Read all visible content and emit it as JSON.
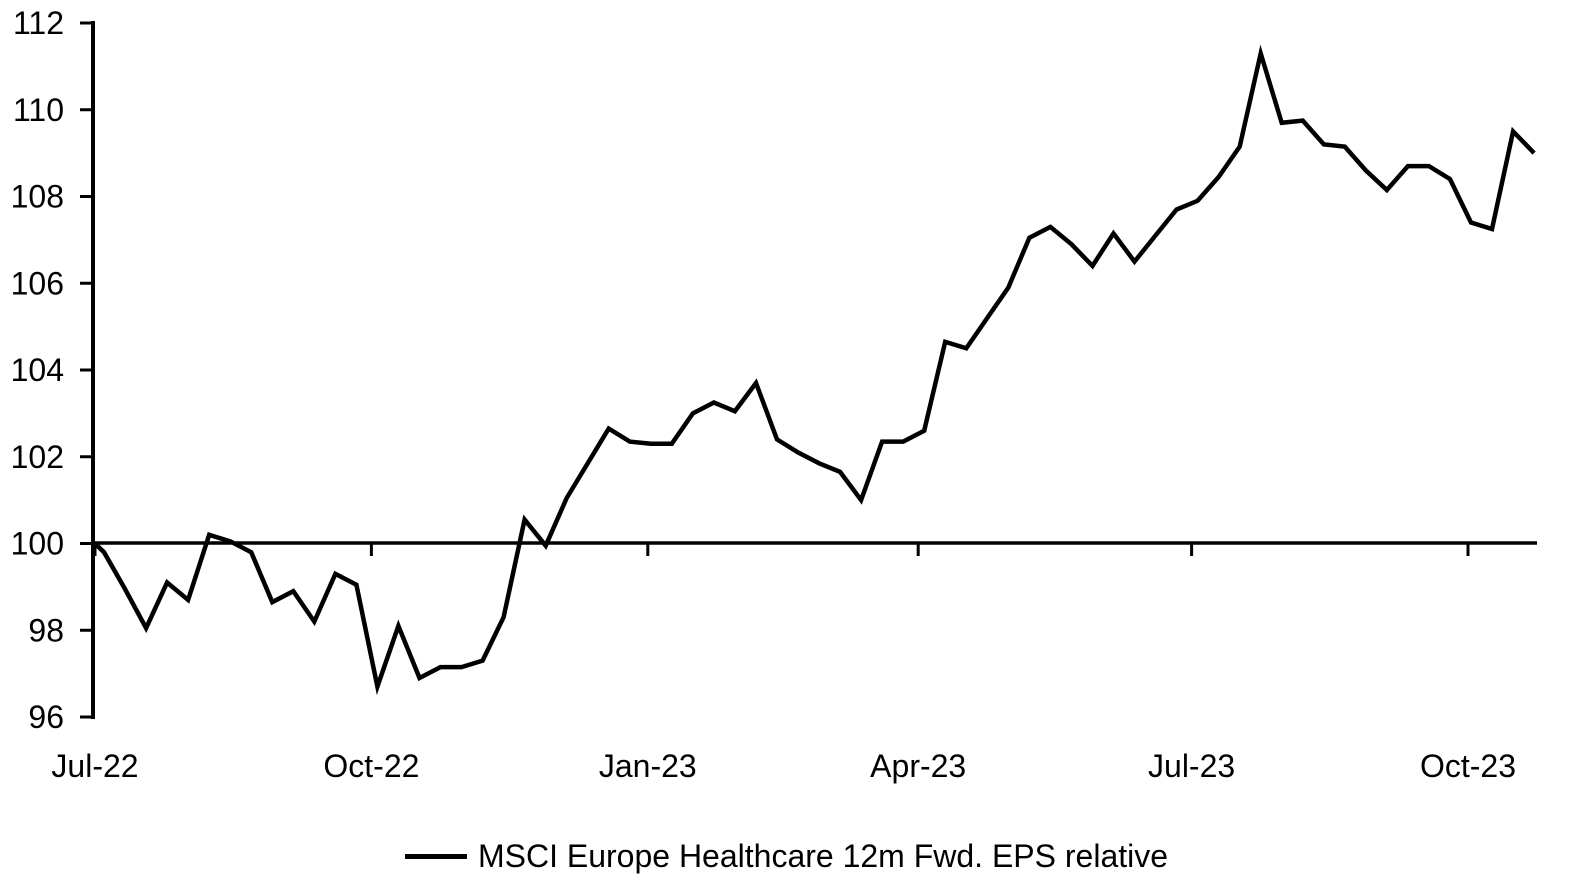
{
  "chart_data": {
    "type": "line",
    "title": "",
    "xlabel": "",
    "ylabel": "",
    "ylim": [
      96,
      112
    ],
    "y_ticks": [
      96,
      98,
      100,
      102,
      104,
      106,
      108,
      110,
      112
    ],
    "x_ticks": [
      {
        "label": "Jul-22",
        "date": "2022-07-01"
      },
      {
        "label": "Oct-22",
        "date": "2022-10-01"
      },
      {
        "label": "Jan-23",
        "date": "2023-01-01"
      },
      {
        "label": "Apr-23",
        "date": "2023-04-01"
      },
      {
        "label": "Jul-23",
        "date": "2023-07-01"
      },
      {
        "label": "Oct-23",
        "date": "2023-10-01"
      }
    ],
    "baseline_value": 100,
    "grid": false,
    "axis_color": "#000000",
    "background_color": "#ffffff",
    "legend_position": "bottom-center",
    "legend": {
      "label": "MSCI Europe Healthcare 12m Fwd. EPS relative"
    },
    "series": [
      {
        "name": "MSCI Europe Healthcare 12m Fwd. EPS relative",
        "color": "#000000",
        "points": [
          {
            "date": "2022-07-01",
            "value": 100.0
          },
          {
            "date": "2022-07-04",
            "value": 99.8
          },
          {
            "date": "2022-07-11",
            "value": 98.95
          },
          {
            "date": "2022-07-18",
            "value": 98.05
          },
          {
            "date": "2022-07-25",
            "value": 99.1
          },
          {
            "date": "2022-08-01",
            "value": 98.7
          },
          {
            "date": "2022-08-08",
            "value": 100.2
          },
          {
            "date": "2022-08-15",
            "value": 100.05
          },
          {
            "date": "2022-08-22",
            "value": 99.8
          },
          {
            "date": "2022-08-29",
            "value": 98.65
          },
          {
            "date": "2022-09-05",
            "value": 98.9
          },
          {
            "date": "2022-09-12",
            "value": 98.2
          },
          {
            "date": "2022-09-19",
            "value": 99.3
          },
          {
            "date": "2022-09-26",
            "value": 99.05
          },
          {
            "date": "2022-10-03",
            "value": 96.7
          },
          {
            "date": "2022-10-10",
            "value": 98.1
          },
          {
            "date": "2022-10-17",
            "value": 96.9
          },
          {
            "date": "2022-10-24",
            "value": 97.15
          },
          {
            "date": "2022-10-31",
            "value": 97.15
          },
          {
            "date": "2022-11-07",
            "value": 97.3
          },
          {
            "date": "2022-11-14",
            "value": 98.3
          },
          {
            "date": "2022-11-21",
            "value": 100.55
          },
          {
            "date": "2022-11-28",
            "value": 99.95
          },
          {
            "date": "2022-12-05",
            "value": 101.05
          },
          {
            "date": "2022-12-12",
            "value": 101.85
          },
          {
            "date": "2022-12-19",
            "value": 102.65
          },
          {
            "date": "2022-12-26",
            "value": 102.35
          },
          {
            "date": "2023-01-02",
            "value": 102.3
          },
          {
            "date": "2023-01-09",
            "value": 102.3
          },
          {
            "date": "2023-01-16",
            "value": 103.0
          },
          {
            "date": "2023-01-23",
            "value": 103.25
          },
          {
            "date": "2023-01-30",
            "value": 103.05
          },
          {
            "date": "2023-02-06",
            "value": 103.7
          },
          {
            "date": "2023-02-13",
            "value": 102.4
          },
          {
            "date": "2023-02-20",
            "value": 102.1
          },
          {
            "date": "2023-02-27",
            "value": 101.85
          },
          {
            "date": "2023-03-06",
            "value": 101.65
          },
          {
            "date": "2023-03-13",
            "value": 101.0
          },
          {
            "date": "2023-03-20",
            "value": 102.35
          },
          {
            "date": "2023-03-27",
            "value": 102.35
          },
          {
            "date": "2023-04-03",
            "value": 102.6
          },
          {
            "date": "2023-04-10",
            "value": 104.65
          },
          {
            "date": "2023-04-17",
            "value": 104.5
          },
          {
            "date": "2023-04-24",
            "value": 105.2
          },
          {
            "date": "2023-05-01",
            "value": 105.9
          },
          {
            "date": "2023-05-08",
            "value": 107.05
          },
          {
            "date": "2023-05-15",
            "value": 107.3
          },
          {
            "date": "2023-05-22",
            "value": 106.9
          },
          {
            "date": "2023-05-29",
            "value": 106.4
          },
          {
            "date": "2023-06-05",
            "value": 107.15
          },
          {
            "date": "2023-06-12",
            "value": 106.5
          },
          {
            "date": "2023-06-19",
            "value": 107.1
          },
          {
            "date": "2023-06-26",
            "value": 107.7
          },
          {
            "date": "2023-07-03",
            "value": 107.9
          },
          {
            "date": "2023-07-10",
            "value": 108.45
          },
          {
            "date": "2023-07-17",
            "value": 109.15
          },
          {
            "date": "2023-07-24",
            "value": 111.3
          },
          {
            "date": "2023-07-31",
            "value": 109.7
          },
          {
            "date": "2023-08-07",
            "value": 109.75
          },
          {
            "date": "2023-08-14",
            "value": 109.2
          },
          {
            "date": "2023-08-21",
            "value": 109.15
          },
          {
            "date": "2023-08-28",
            "value": 108.6
          },
          {
            "date": "2023-09-04",
            "value": 108.15
          },
          {
            "date": "2023-09-11",
            "value": 108.7
          },
          {
            "date": "2023-09-18",
            "value": 108.7
          },
          {
            "date": "2023-09-25",
            "value": 108.4
          },
          {
            "date": "2023-10-02",
            "value": 107.4
          },
          {
            "date": "2023-10-09",
            "value": 107.25
          },
          {
            "date": "2023-10-16",
            "value": 109.5
          },
          {
            "date": "2023-10-23",
            "value": 109.0
          }
        ]
      }
    ]
  }
}
